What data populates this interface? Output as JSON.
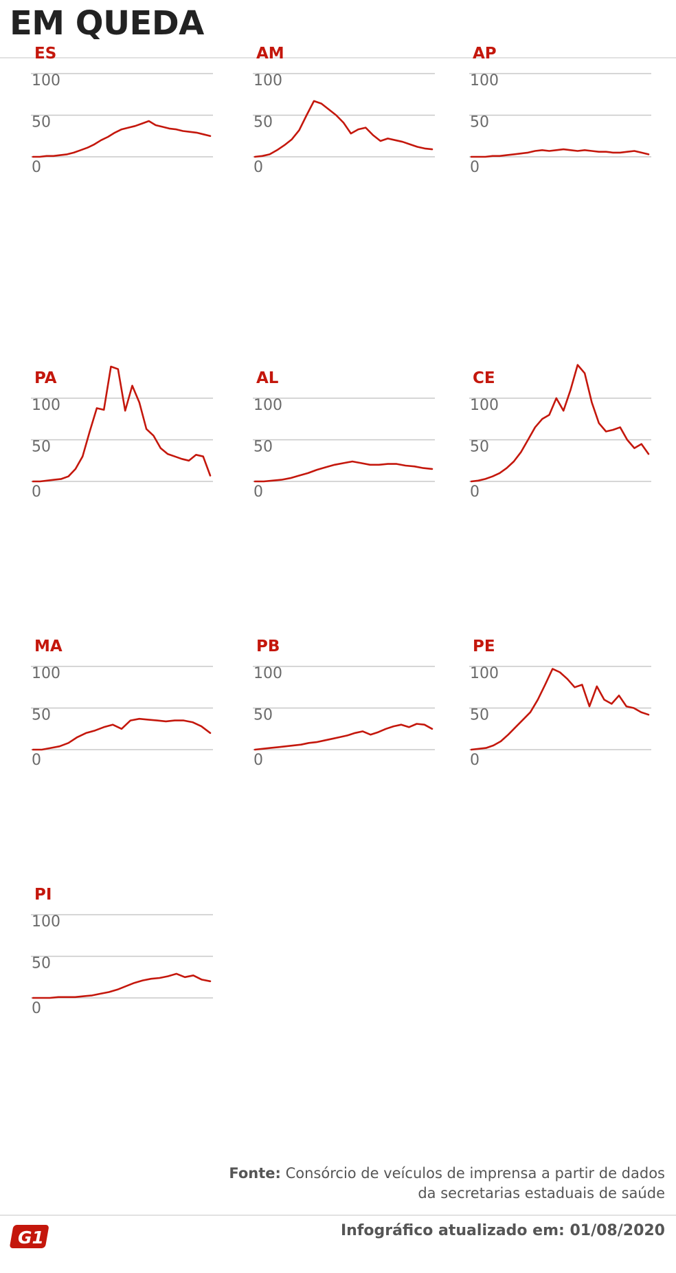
{
  "title": "EM QUEDA",
  "colors": {
    "line": "#c4170c",
    "label": "#c4170c",
    "grid": "#c8c8c8",
    "logo": "#c4170c"
  },
  "footer": {
    "source_label": "Fonte:",
    "source_text": "Consórcio de veículos de imprensa a partir de dados da secretarias estaduais de saúde",
    "update_text": "Infográfico atualizado em: 01/08/2020",
    "logo_text": "G1"
  },
  "chart_data": [
    {
      "type": "line",
      "title": "ES",
      "ylim": [
        0,
        100
      ],
      "yticks": [
        0,
        50,
        100
      ],
      "series": [
        {
          "values": [
            0,
            0,
            1,
            1,
            2,
            3,
            5,
            8,
            11,
            15,
            20,
            24,
            29,
            33,
            35,
            37,
            40,
            43,
            38,
            36,
            34,
            33,
            31,
            30,
            29,
            27,
            25
          ]
        }
      ]
    },
    {
      "type": "line",
      "title": "AM",
      "ylim": [
        0,
        100
      ],
      "yticks": [
        0,
        50,
        100
      ],
      "series": [
        {
          "values": [
            0,
            1,
            3,
            8,
            14,
            21,
            32,
            50,
            67,
            64,
            57,
            50,
            41,
            28,
            33,
            35,
            26,
            19,
            22,
            20,
            18,
            15,
            12,
            10,
            9
          ]
        }
      ]
    },
    {
      "type": "line",
      "title": "AP",
      "ylim": [
        0,
        100
      ],
      "yticks": [
        0,
        50,
        100
      ],
      "series": [
        {
          "values": [
            0,
            0,
            0,
            1,
            1,
            2,
            3,
            4,
            5,
            7,
            8,
            7,
            8,
            9,
            8,
            7,
            8,
            7,
            6,
            6,
            5,
            5,
            6,
            7,
            5,
            3
          ]
        }
      ]
    },
    {
      "type": "line",
      "title": "PA",
      "ylim": [
        0,
        100
      ],
      "yticks": [
        0,
        50,
        100
      ],
      "series": [
        {
          "values": [
            0,
            0,
            1,
            2,
            3,
            6,
            15,
            30,
            60,
            88,
            86,
            138,
            135,
            85,
            115,
            95,
            63,
            55,
            40,
            33,
            30,
            27,
            25,
            32,
            30,
            7
          ]
        }
      ]
    },
    {
      "type": "line",
      "title": "AL",
      "ylim": [
        0,
        100
      ],
      "yticks": [
        0,
        50,
        100
      ],
      "series": [
        {
          "values": [
            0,
            0,
            1,
            2,
            4,
            7,
            10,
            14,
            17,
            20,
            22,
            24,
            22,
            20,
            20,
            21,
            21,
            19,
            18,
            16,
            15
          ]
        }
      ]
    },
    {
      "type": "line",
      "title": "CE",
      "ylim": [
        0,
        100
      ],
      "yticks": [
        0,
        50,
        100
      ],
      "series": [
        {
          "values": [
            0,
            1,
            3,
            6,
            10,
            16,
            24,
            35,
            50,
            65,
            75,
            80,
            100,
            85,
            110,
            140,
            130,
            95,
            70,
            60,
            62,
            65,
            50,
            40,
            45,
            33
          ]
        }
      ]
    },
    {
      "type": "line",
      "title": "MA",
      "ylim": [
        0,
        100
      ],
      "yticks": [
        0,
        50,
        100
      ],
      "series": [
        {
          "values": [
            0,
            0,
            2,
            4,
            8,
            15,
            20,
            23,
            27,
            30,
            25,
            35,
            37,
            36,
            35,
            34,
            35,
            35,
            33,
            28,
            20
          ]
        }
      ]
    },
    {
      "type": "line",
      "title": "PB",
      "ylim": [
        0,
        100
      ],
      "yticks": [
        0,
        50,
        100
      ],
      "series": [
        {
          "values": [
            0,
            1,
            2,
            3,
            4,
            5,
            6,
            8,
            9,
            11,
            13,
            15,
            17,
            20,
            22,
            18,
            21,
            25,
            28,
            30,
            27,
            31,
            30,
            25
          ]
        }
      ]
    },
    {
      "type": "line",
      "title": "PE",
      "ylim": [
        0,
        100
      ],
      "yticks": [
        0,
        50,
        100
      ],
      "series": [
        {
          "values": [
            0,
            1,
            2,
            5,
            10,
            18,
            27,
            36,
            45,
            60,
            78,
            97,
            93,
            85,
            75,
            78,
            52,
            76,
            60,
            55,
            65,
            52,
            50,
            45,
            42
          ]
        }
      ]
    },
    {
      "type": "line",
      "title": "PI",
      "ylim": [
        0,
        100
      ],
      "yticks": [
        0,
        50,
        100
      ],
      "series": [
        {
          "values": [
            0,
            0,
            0,
            1,
            1,
            1,
            2,
            3,
            5,
            7,
            10,
            14,
            18,
            21,
            23,
            24,
            26,
            29,
            25,
            27,
            22,
            20
          ]
        }
      ]
    }
  ]
}
